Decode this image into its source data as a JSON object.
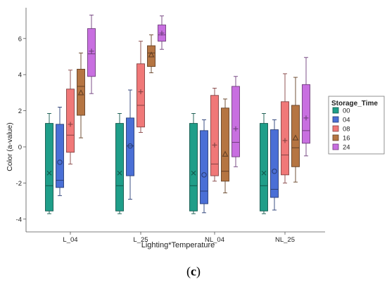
{
  "caption": {
    "prefix": "(",
    "letter": "c",
    "suffix": ")"
  },
  "chart_data": {
    "type": "box",
    "xlabel": "Lighting*Temperature",
    "ylabel": "Color (a-value)",
    "ylim": [
      -4.2,
      7.5
    ],
    "yticks": [
      "-4",
      "-2",
      "0",
      "2",
      "4",
      "6"
    ],
    "categories": [
      "L_04",
      "L_25",
      "NL_04",
      "NL_25"
    ],
    "legend": {
      "title": "Storage_Time",
      "position": "right"
    },
    "series": [
      {
        "name": "00",
        "color": "#1f9e89",
        "mean_marker": "×",
        "stats": [
          {
            "min": -3.7,
            "q1": -3.55,
            "median": -2.15,
            "q3": 1.3,
            "max": 1.85,
            "mean": -1.45
          },
          {
            "min": -3.7,
            "q1": -3.55,
            "median": -2.15,
            "q3": 1.3,
            "max": 1.85,
            "mean": -1.45
          },
          {
            "min": -3.7,
            "q1": -3.55,
            "median": -2.15,
            "q3": 1.3,
            "max": 1.85,
            "mean": -1.45
          },
          {
            "min": -3.7,
            "q1": -3.55,
            "median": -2.15,
            "q3": 1.3,
            "max": 1.85,
            "mean": -1.45
          }
        ]
      },
      {
        "name": "04",
        "color": "#4a6fd6",
        "mean_marker": "○",
        "stats": [
          {
            "min": -2.7,
            "q1": -2.25,
            "median": -1.85,
            "q3": 1.25,
            "max": 2.2,
            "mean": -0.85
          },
          {
            "min": -2.9,
            "q1": -1.6,
            "median": 0.05,
            "q3": 1.6,
            "max": 3.15,
            "mean": 0.05
          },
          {
            "min": -3.65,
            "q1": -3.15,
            "median": -2.45,
            "q3": 0.9,
            "max": 1.5,
            "mean": -1.55
          },
          {
            "min": -3.5,
            "q1": -2.8,
            "median": -2.35,
            "q3": 0.95,
            "max": 1.5,
            "mean": -1.35
          }
        ]
      },
      {
        "name": "08",
        "color": "#f07878",
        "mean_marker": "+",
        "stats": [
          {
            "min": -0.95,
            "q1": -0.3,
            "median": 0.65,
            "q3": 3.2,
            "max": 4.25,
            "mean": 1.25
          },
          {
            "min": 0.8,
            "q1": 1.1,
            "median": 2.3,
            "q3": 4.6,
            "max": 5.85,
            "mean": 3.05
          },
          {
            "min": -1.9,
            "q1": -1.6,
            "median": -0.95,
            "q3": 2.85,
            "max": 3.25,
            "mean": 0.1
          },
          {
            "min": -2.0,
            "q1": -1.55,
            "median": -0.45,
            "q3": 2.5,
            "max": 4.05,
            "mean": 0.35
          }
        ]
      },
      {
        "name": "16",
        "color": "#b57542",
        "mean_marker": "△",
        "stats": [
          {
            "min": 0.5,
            "q1": 1.75,
            "median": 3.35,
            "q3": 4.3,
            "max": 5.2,
            "mean": 3.0
          },
          {
            "min": 4.1,
            "q1": 4.45,
            "median": 5.2,
            "q3": 5.6,
            "max": 6.2,
            "mean": 5.1
          },
          {
            "min": -2.55,
            "q1": -1.9,
            "median": -1.35,
            "q3": 2.15,
            "max": 2.65,
            "mean": -0.4
          },
          {
            "min": -1.95,
            "q1": -1.1,
            "median": -0.05,
            "q3": 2.3,
            "max": 3.85,
            "mean": 0.5
          }
        ]
      },
      {
        "name": "24",
        "color": "#c86fe0",
        "mean_marker": "+",
        "stats": [
          {
            "min": 2.95,
            "q1": 3.9,
            "median": 5.15,
            "q3": 6.55,
            "max": 7.3,
            "mean": 5.3
          },
          {
            "min": 5.4,
            "q1": 5.85,
            "median": 6.2,
            "q3": 6.75,
            "max": 7.25,
            "mean": 6.3
          },
          {
            "min": -1.1,
            "q1": -0.55,
            "median": 0.25,
            "q3": 3.35,
            "max": 3.9,
            "mean": 1.0
          },
          {
            "min": -0.5,
            "q1": 0.2,
            "median": 0.9,
            "q3": 3.45,
            "max": 4.95,
            "mean": 1.6
          }
        ]
      }
    ]
  }
}
